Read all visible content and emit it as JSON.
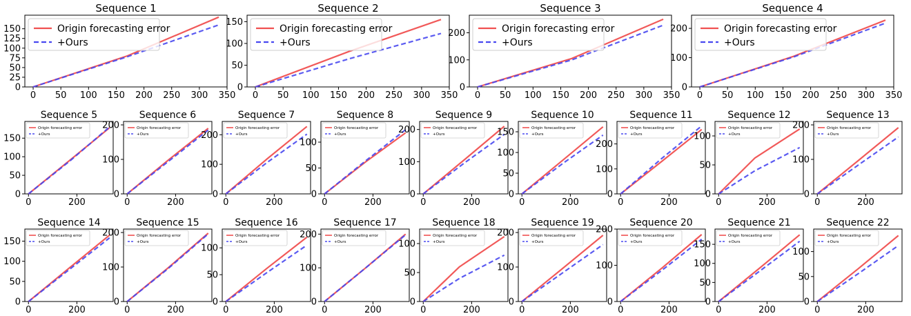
{
  "legend_labels": {
    "origin": "Origin forecasting error",
    "ours": "+Ours"
  },
  "colors": {
    "origin": "#f05050",
    "ours": "#4848f0"
  },
  "chart_data": [
    {
      "type": "line",
      "title": "Sequence 1",
      "x": [
        0,
        335
      ],
      "xlim": [
        -15,
        350
      ],
      "ylim": [
        0,
        185
      ],
      "xticks": [
        0,
        50,
        100,
        150,
        200,
        250,
        300,
        350
      ],
      "yticks": [
        0,
        25,
        50,
        75,
        100,
        125,
        150
      ],
      "legend": "top-left",
      "series": [
        {
          "name": "Origin forecasting error",
          "x": [
            0,
            170,
            335
          ],
          "y": [
            0,
            80,
            180
          ]
        },
        {
          "name": "+Ours",
          "x": [
            0,
            170,
            335
          ],
          "y": [
            0,
            78,
            160
          ]
        }
      ]
    },
    {
      "type": "line",
      "title": "Sequence 2",
      "x": [
        0,
        335
      ],
      "xlim": [
        -15,
        350
      ],
      "ylim": [
        0,
        165
      ],
      "xticks": [
        0,
        50,
        100,
        150,
        200,
        250,
        300,
        350
      ],
      "yticks": [
        0,
        50,
        100,
        150
      ],
      "legend": "top-left",
      "series": [
        {
          "name": "Origin forecasting error",
          "x": [
            0,
            170,
            335
          ],
          "y": [
            0,
            82,
            155
          ]
        },
        {
          "name": "+Ours",
          "x": [
            0,
            170,
            335
          ],
          "y": [
            0,
            65,
            123
          ]
        }
      ]
    },
    {
      "type": "line",
      "title": "Sequence 3",
      "x": [
        0,
        335
      ],
      "xlim": [
        -15,
        350
      ],
      "ylim": [
        0,
        265
      ],
      "xticks": [
        0,
        50,
        100,
        150,
        200,
        250,
        300,
        350
      ],
      "yticks": [
        0,
        100,
        200
      ],
      "legend": "top-left",
      "series": [
        {
          "name": "Origin forecasting error",
          "x": [
            0,
            170,
            335
          ],
          "y": [
            0,
            105,
            250
          ]
        },
        {
          "name": "+Ours",
          "x": [
            0,
            170,
            335
          ],
          "y": [
            0,
            100,
            228
          ]
        }
      ]
    },
    {
      "type": "line",
      "title": "Sequence 4",
      "x": [
        0,
        335
      ],
      "xlim": [
        -15,
        350
      ],
      "ylim": [
        0,
        245
      ],
      "xticks": [
        0,
        50,
        100,
        150,
        200,
        250,
        300,
        350
      ],
      "yticks": [
        0,
        100,
        200
      ],
      "legend": "top-left",
      "series": [
        {
          "name": "Origin forecasting error",
          "x": [
            0,
            170,
            335
          ],
          "y": [
            0,
            105,
            228
          ]
        },
        {
          "name": "+Ours",
          "x": [
            0,
            170,
            335
          ],
          "y": [
            0,
            103,
            218
          ]
        }
      ]
    },
    {
      "type": "line",
      "title": "Sequence 5",
      "x": [
        0,
        335
      ],
      "xlim": [
        -15,
        350
      ],
      "ylim": [
        0,
        195
      ],
      "xticks": [
        0,
        200
      ],
      "yticks": [
        0,
        50,
        100,
        150
      ],
      "legend": "top-left",
      "series": [
        {
          "name": "Origin forecasting error",
          "x": [
            0,
            170,
            335
          ],
          "y": [
            0,
            90,
            178
          ]
        },
        {
          "name": "+Ours",
          "x": [
            0,
            170,
            335
          ],
          "y": [
            0,
            88,
            180
          ]
        }
      ]
    },
    {
      "type": "line",
      "title": "Sequence 6",
      "x": [
        0,
        335
      ],
      "xlim": [
        -15,
        350
      ],
      "ylim": [
        0,
        210
      ],
      "xticks": [
        0,
        200
      ],
      "yticks": [
        0,
        100,
        200
      ],
      "legend": "top-left",
      "series": [
        {
          "name": "Origin forecasting error",
          "x": [
            0,
            170,
            335
          ],
          "y": [
            0,
            98,
            190
          ]
        },
        {
          "name": "+Ours",
          "x": [
            0,
            170,
            335
          ],
          "y": [
            0,
            94,
            185
          ]
        }
      ]
    },
    {
      "type": "line",
      "title": "Sequence 7",
      "x": [
        0,
        335
      ],
      "xlim": [
        -15,
        350
      ],
      "ylim": [
        0,
        245
      ],
      "xticks": [
        0,
        200
      ],
      "yticks": [
        0,
        100,
        200
      ],
      "legend": "top-left",
      "series": [
        {
          "name": "Origin forecasting error",
          "x": [
            0,
            170,
            335
          ],
          "y": [
            0,
            118,
            228
          ]
        },
        {
          "name": "+Ours",
          "x": [
            0,
            170,
            335
          ],
          "y": [
            0,
            106,
            202
          ]
        }
      ]
    },
    {
      "type": "line",
      "title": "Sequence 8",
      "x": [
        0,
        335
      ],
      "xlim": [
        -15,
        350
      ],
      "ylim": [
        0,
        140
      ],
      "xticks": [
        0,
        200
      ],
      "yticks": [
        0,
        50,
        100
      ],
      "legend": "top-left",
      "series": [
        {
          "name": "Origin forecasting error",
          "x": [
            0,
            170,
            335
          ],
          "y": [
            0,
            62,
            118
          ]
        },
        {
          "name": "+Ours",
          "x": [
            0,
            170,
            335
          ],
          "y": [
            0,
            64,
            124
          ]
        }
      ]
    },
    {
      "type": "line",
      "title": "Sequence 9",
      "x": [
        0,
        335
      ],
      "xlim": [
        -15,
        350
      ],
      "ylim": [
        0,
        225
      ],
      "xticks": [
        0,
        200
      ],
      "yticks": [
        0,
        100,
        200
      ],
      "legend": "top-left",
      "series": [
        {
          "name": "Origin forecasting error",
          "x": [
            0,
            170,
            335
          ],
          "y": [
            0,
            106,
            210
          ]
        },
        {
          "name": "+Ours",
          "x": [
            0,
            170,
            335
          ],
          "y": [
            0,
            96,
            185
          ]
        }
      ]
    },
    {
      "type": "line",
      "title": "Sequence 10",
      "x": [
        0,
        335
      ],
      "xlim": [
        -15,
        350
      ],
      "ylim": [
        0,
        175
      ],
      "xticks": [
        0,
        200
      ],
      "yticks": [
        0,
        50,
        100,
        150
      ],
      "legend": "top-left",
      "series": [
        {
          "name": "Origin forecasting error",
          "x": [
            0,
            170,
            335
          ],
          "y": [
            0,
            82,
            162
          ]
        },
        {
          "name": "+Ours",
          "x": [
            0,
            170,
            335
          ],
          "y": [
            0,
            74,
            142
          ]
        }
      ]
    },
    {
      "type": "line",
      "title": "Sequence 11",
      "x": [
        0,
        335
      ],
      "xlim": [
        -15,
        350
      ],
      "ylim": [
        0,
        290
      ],
      "xticks": [
        0,
        200
      ],
      "yticks": [
        0,
        100,
        200
      ],
      "legend": "top-left",
      "series": [
        {
          "name": "Origin forecasting error",
          "x": [
            0,
            170,
            335
          ],
          "y": [
            0,
            130,
            258
          ]
        },
        {
          "name": "+Ours",
          "x": [
            0,
            170,
            335
          ],
          "y": [
            0,
            142,
            272
          ]
        }
      ]
    },
    {
      "type": "line",
      "title": "Sequence 12",
      "x": [
        0,
        335
      ],
      "xlim": [
        -15,
        350
      ],
      "ylim": [
        0,
        125
      ],
      "xticks": [
        0,
        200
      ],
      "yticks": [
        0,
        50,
        100
      ],
      "legend": "top-left",
      "series": [
        {
          "name": "Origin forecasting error",
          "x": [
            0,
            150,
            335
          ],
          "y": [
            0,
            62,
            112
          ]
        },
        {
          "name": "+Ours",
          "x": [
            0,
            150,
            335
          ],
          "y": [
            0,
            40,
            80
          ]
        }
      ]
    },
    {
      "type": "line",
      "title": "Sequence 13",
      "x": [
        0,
        335
      ],
      "xlim": [
        -15,
        350
      ],
      "ylim": [
        0,
        210
      ],
      "xticks": [
        0,
        200
      ],
      "yticks": [
        0,
        100,
        200
      ],
      "legend": "top-left",
      "series": [
        {
          "name": "Origin forecasting error",
          "x": [
            0,
            170,
            335
          ],
          "y": [
            0,
            97,
            192
          ]
        },
        {
          "name": "+Ours",
          "x": [
            0,
            170,
            335
          ],
          "y": [
            0,
            84,
            165
          ]
        }
      ]
    },
    {
      "type": "line",
      "title": "Sequence 14",
      "x": [
        0,
        335
      ],
      "xlim": [
        -15,
        350
      ],
      "ylim": [
        0,
        180
      ],
      "xticks": [
        0,
        200
      ],
      "yticks": [
        0,
        50,
        100,
        150
      ],
      "legend": "top-left",
      "series": [
        {
          "name": "Origin forecasting error",
          "x": [
            0,
            170,
            335
          ],
          "y": [
            0,
            84,
            165
          ]
        },
        {
          "name": "+Ours",
          "x": [
            0,
            170,
            335
          ],
          "y": [
            0,
            80,
            158
          ]
        }
      ]
    },
    {
      "type": "line",
      "title": "Sequence 15",
      "x": [
        0,
        335
      ],
      "xlim": [
        -15,
        350
      ],
      "ylim": [
        0,
        210
      ],
      "xticks": [
        0,
        200
      ],
      "yticks": [
        0,
        100,
        200
      ],
      "legend": "top-left",
      "series": [
        {
          "name": "Origin forecasting error",
          "x": [
            0,
            170,
            335
          ],
          "y": [
            0,
            98,
            198
          ]
        },
        {
          "name": "+Ours",
          "x": [
            0,
            170,
            335
          ],
          "y": [
            0,
            96,
            196
          ]
        }
      ]
    },
    {
      "type": "line",
      "title": "Sequence 16",
      "x": [
        0,
        335
      ],
      "xlim": [
        -15,
        350
      ],
      "ylim": [
        0,
        135
      ],
      "xticks": [
        0,
        200
      ],
      "yticks": [
        0,
        50,
        100
      ],
      "legend": "top-left",
      "series": [
        {
          "name": "Origin forecasting error",
          "x": [
            0,
            170,
            335
          ],
          "y": [
            0,
            62,
            120
          ]
        },
        {
          "name": "+Ours",
          "x": [
            0,
            170,
            335
          ],
          "y": [
            0,
            54,
            105
          ]
        }
      ]
    },
    {
      "type": "line",
      "title": "Sequence 17",
      "x": [
        0,
        335
      ],
      "xlim": [
        -15,
        350
      ],
      "ylim": [
        0,
        215
      ],
      "xticks": [
        0,
        200
      ],
      "yticks": [
        0,
        100,
        200
      ],
      "legend": "top-left",
      "series": [
        {
          "name": "Origin forecasting error",
          "x": [
            0,
            170,
            335
          ],
          "y": [
            0,
            100,
            200
          ]
        },
        {
          "name": "+Ours",
          "x": [
            0,
            170,
            335
          ],
          "y": [
            0,
            100,
            198
          ]
        }
      ]
    },
    {
      "type": "line",
      "title": "Sequence 18",
      "x": [
        0,
        335
      ],
      "xlim": [
        -15,
        350
      ],
      "ylim": [
        0,
        125
      ],
      "xticks": [
        0,
        200
      ],
      "yticks": [
        0,
        50,
        100
      ],
      "legend": "top-left",
      "series": [
        {
          "name": "Origin forecasting error",
          "x": [
            0,
            150,
            335
          ],
          "y": [
            0,
            60,
            112
          ]
        },
        {
          "name": "+Ours",
          "x": [
            0,
            150,
            335
          ],
          "y": [
            0,
            40,
            80
          ]
        }
      ]
    },
    {
      "type": "line",
      "title": "Sequence 19",
      "x": [
        0,
        335
      ],
      "xlim": [
        -15,
        350
      ],
      "ylim": [
        0,
        210
      ],
      "xticks": [
        0,
        200
      ],
      "yticks": [
        0,
        100,
        200
      ],
      "legend": "top-left",
      "series": [
        {
          "name": "Origin forecasting error",
          "x": [
            0,
            170,
            335
          ],
          "y": [
            0,
            97,
            192
          ]
        },
        {
          "name": "+Ours",
          "x": [
            0,
            170,
            335
          ],
          "y": [
            0,
            84,
            165
          ]
        }
      ]
    },
    {
      "type": "line",
      "title": "Sequence 20",
      "x": [
        0,
        335
      ],
      "xlim": [
        -15,
        350
      ],
      "ylim": [
        0,
        200
      ],
      "xticks": [
        0,
        200
      ],
      "yticks": [
        0,
        100,
        200
      ],
      "legend": "top-left",
      "series": [
        {
          "name": "Origin forecasting error",
          "x": [
            0,
            170,
            335
          ],
          "y": [
            0,
            92,
            185
          ]
        },
        {
          "name": "+Ours",
          "x": [
            0,
            170,
            335
          ],
          "y": [
            0,
            86,
            172
          ]
        }
      ]
    },
    {
      "type": "line",
      "title": "Sequence 21",
      "x": [
        0,
        335
      ],
      "xlim": [
        -15,
        350
      ],
      "ylim": [
        0,
        190
      ],
      "xticks": [
        0,
        200
      ],
      "yticks": [
        0,
        50,
        100,
        150
      ],
      "legend": "top-left",
      "series": [
        {
          "name": "Origin forecasting error",
          "x": [
            0,
            170,
            335
          ],
          "y": [
            0,
            88,
            175
          ]
        },
        {
          "name": "+Ours",
          "x": [
            0,
            170,
            335
          ],
          "y": [
            0,
            80,
            158
          ]
        }
      ]
    },
    {
      "type": "line",
      "title": "Sequence 22",
      "x": [
        0,
        335
      ],
      "xlim": [
        -15,
        350
      ],
      "ylim": [
        0,
        145
      ],
      "xticks": [
        0,
        200
      ],
      "yticks": [
        0,
        50,
        100
      ],
      "legend": "top-left",
      "series": [
        {
          "name": "Origin forecasting error",
          "x": [
            0,
            170,
            335
          ],
          "y": [
            0,
            66,
            132
          ]
        },
        {
          "name": "+Ours",
          "x": [
            0,
            170,
            335
          ],
          "y": [
            0,
            56,
            112
          ]
        }
      ]
    }
  ]
}
